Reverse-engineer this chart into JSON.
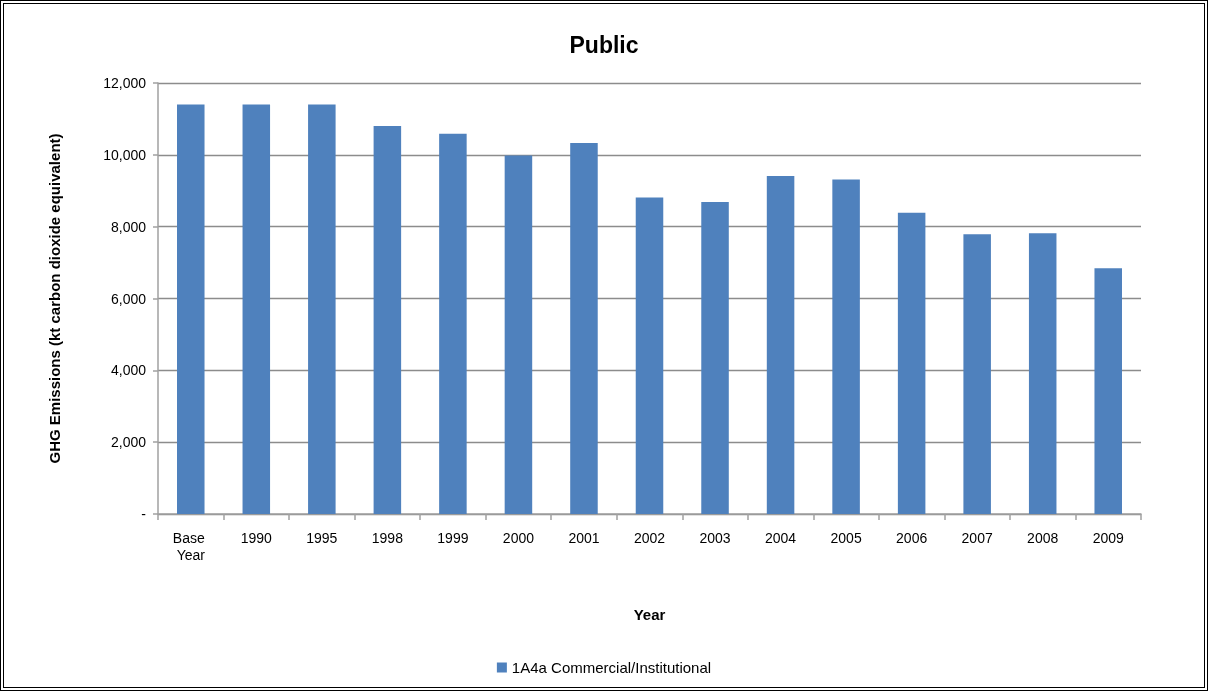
{
  "chart_data": {
    "type": "bar",
    "title": "Public",
    "xlabel": "Year",
    "ylabel": "GHG Emissions (kt carbon dioxide equivalent)",
    "categories": [
      "Base Year",
      "1990",
      "1995",
      "1998",
      "1999",
      "2000",
      "2001",
      "2002",
      "2003",
      "2004",
      "2005",
      "2006",
      "2007",
      "2008",
      "2009"
    ],
    "series": [
      {
        "name": "1A4a Commercial/Institutional",
        "color": "#4f81bd",
        "values": [
          11400,
          11400,
          11400,
          10800,
          10590,
          9980,
          10330,
          8810,
          8690,
          9410,
          9310,
          8390,
          7790,
          7820,
          6840
        ]
      }
    ],
    "ylim": [
      0,
      12000
    ],
    "yticks": [
      {
        "value": 0,
        "label": "-"
      },
      {
        "value": 2000,
        "label": "2,000"
      },
      {
        "value": 4000,
        "label": "4,000"
      },
      {
        "value": 6000,
        "label": "6,000"
      },
      {
        "value": 8000,
        "label": "8,000"
      },
      {
        "value": 10000,
        "label": "10,000"
      },
      {
        "value": 12000,
        "label": "12,000"
      }
    ],
    "grid": "y",
    "legend": "bottom"
  }
}
